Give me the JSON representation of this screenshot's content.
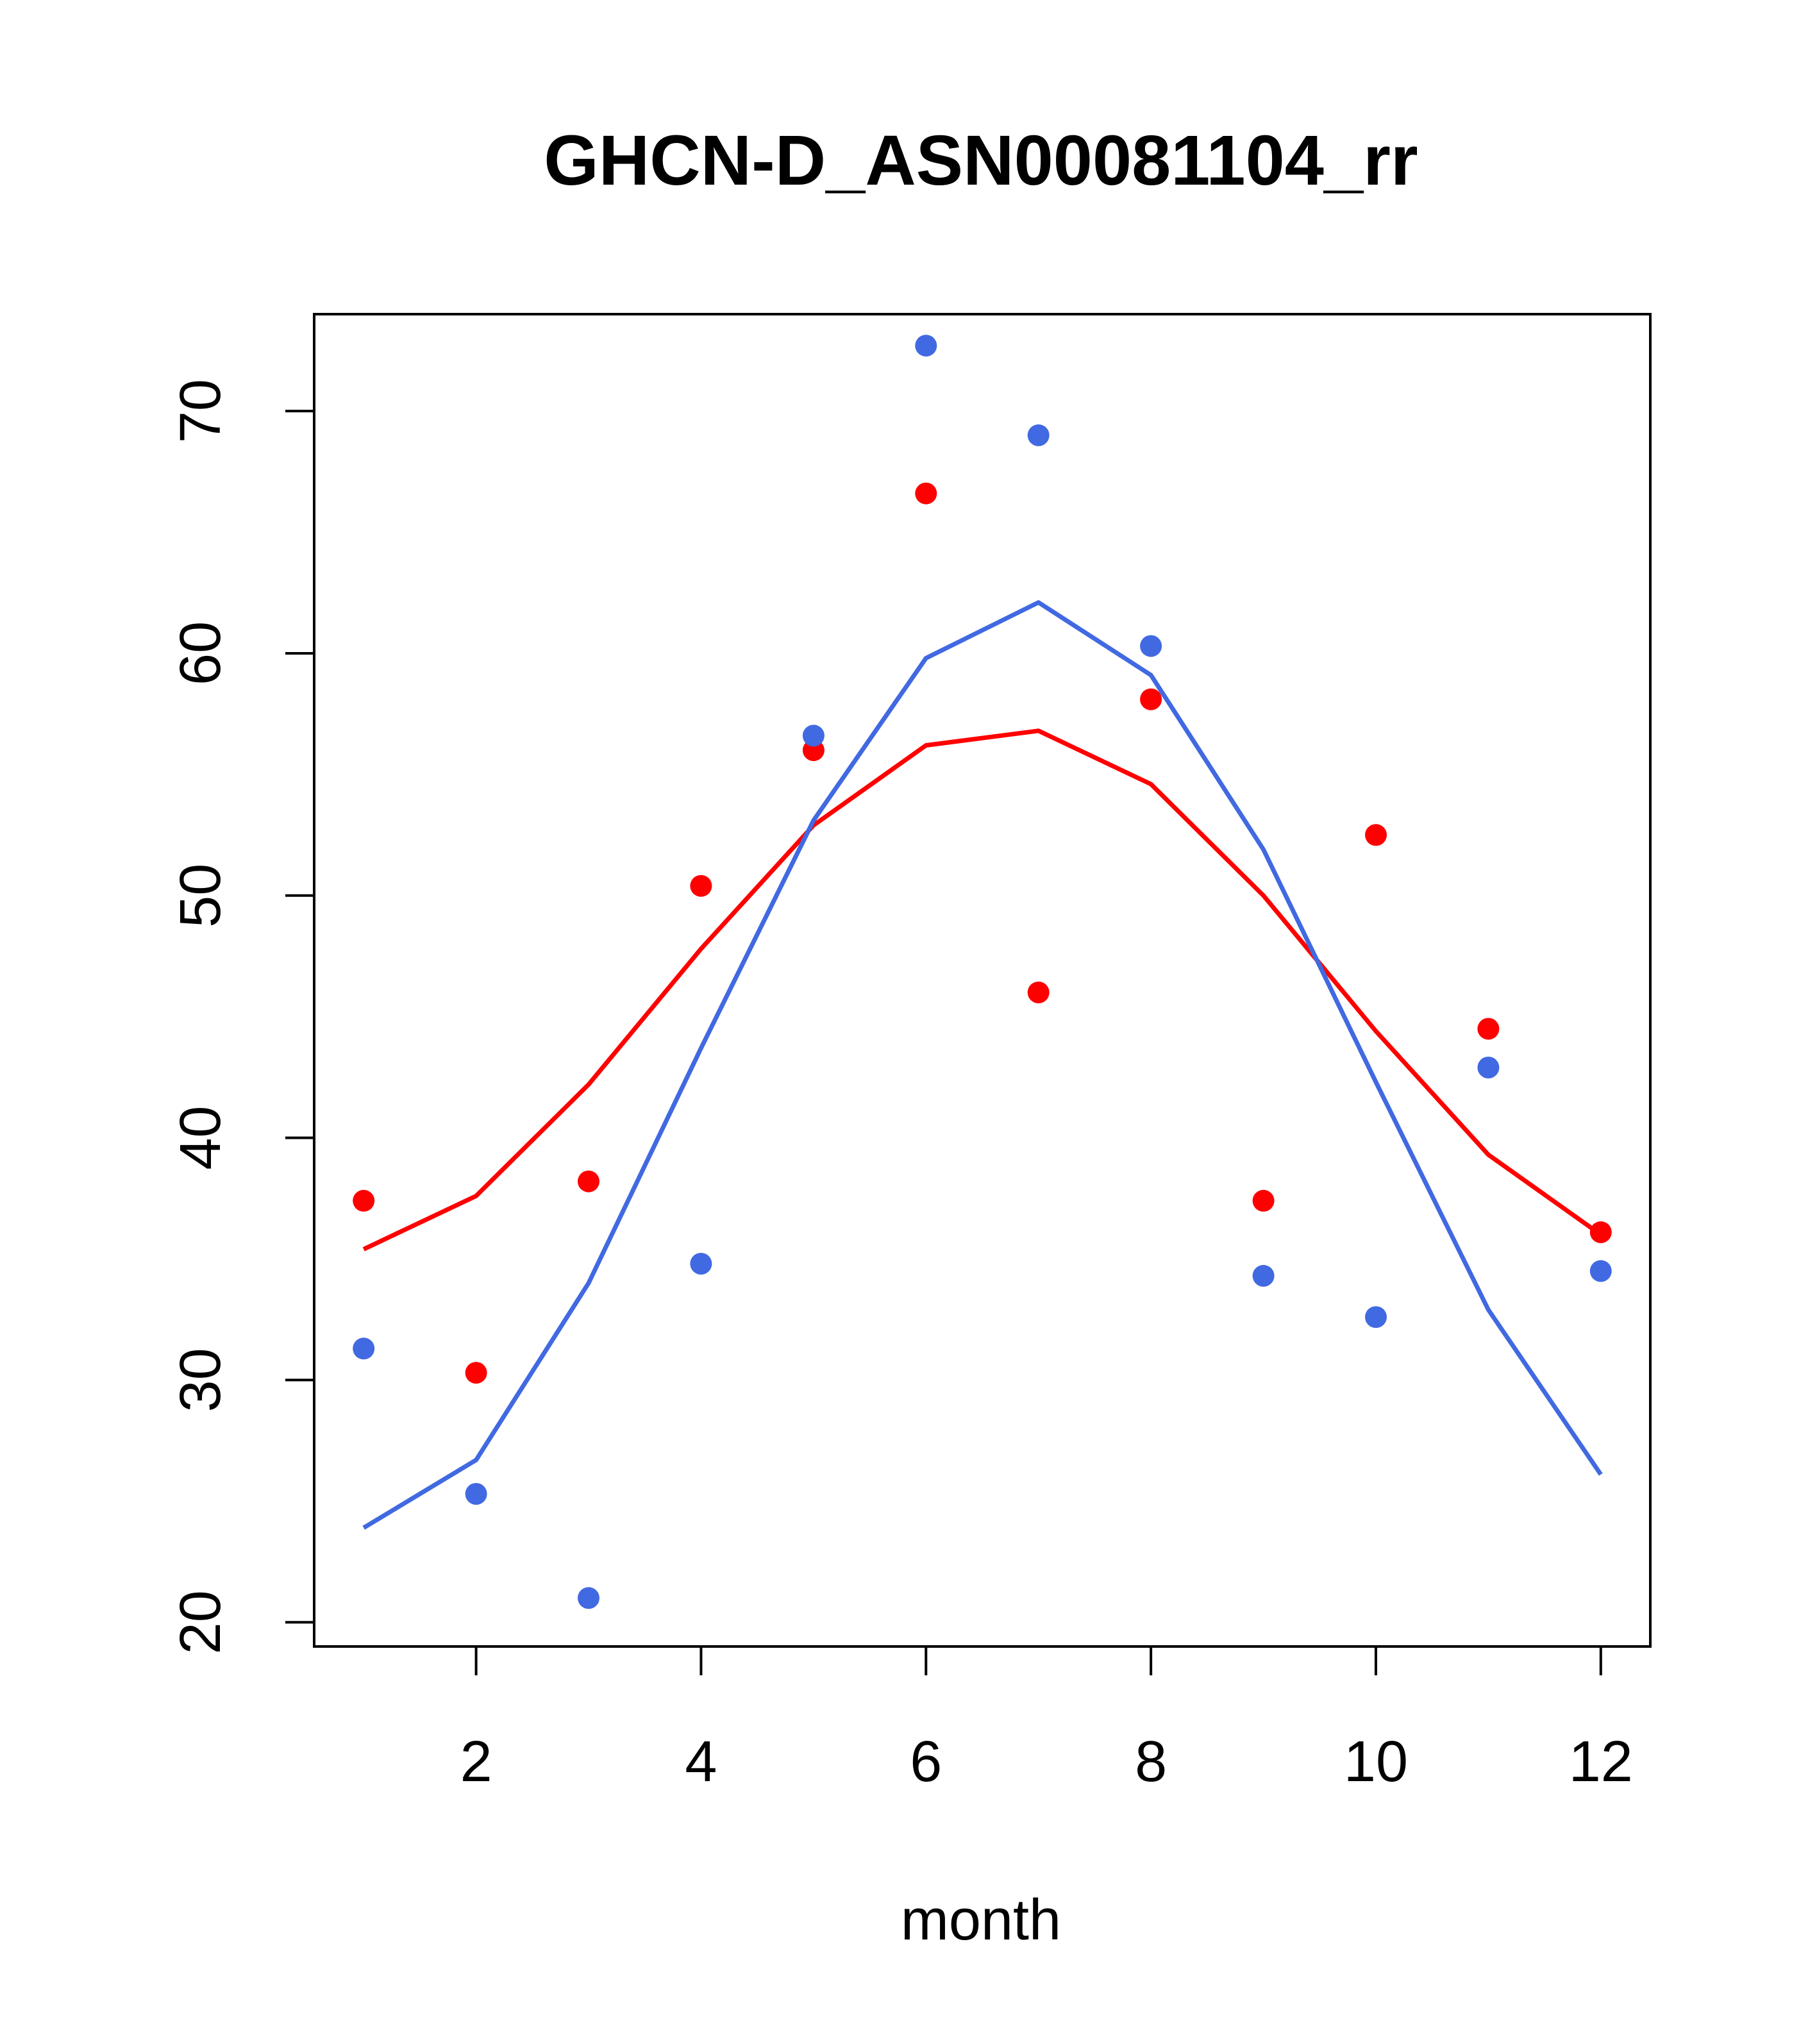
{
  "chart_data": {
    "type": "scatter",
    "title": "GHCN-D_ASN00081104_rr",
    "xlabel": "month",
    "ylabel": "",
    "xlim": [
      0.56,
      12.44
    ],
    "ylim": [
      19,
      74
    ],
    "xticks": [
      2,
      4,
      6,
      8,
      10,
      12
    ],
    "yticks": [
      20,
      30,
      40,
      50,
      60,
      70
    ],
    "grid": false,
    "legend": "none",
    "series": [
      {
        "color": "#FF0000",
        "points": {
          "x": [
            1,
            2,
            3,
            4,
            5,
            6,
            7,
            8,
            9,
            10,
            11,
            12
          ],
          "y": [
            37.4,
            30.3,
            38.2,
            50.4,
            56.0,
            66.6,
            46.0,
            58.1,
            37.4,
            52.5,
            44.5,
            36.1
          ]
        },
        "line": {
          "x": [
            1,
            2,
            3,
            4,
            5,
            6,
            7,
            8,
            9,
            10,
            11,
            12
          ],
          "y": [
            35.4,
            37.6,
            42.2,
            47.8,
            52.9,
            56.2,
            56.8,
            54.6,
            50.0,
            44.4,
            39.3,
            36.0
          ]
        }
      },
      {
        "color": "#4169E1",
        "points": {
          "x": [
            1,
            2,
            3,
            4,
            5,
            6,
            7,
            8,
            9,
            10,
            11,
            12
          ],
          "y": [
            31.3,
            25.3,
            21.0,
            34.8,
            56.6,
            72.7,
            69.0,
            60.3,
            34.3,
            32.6,
            42.9,
            34.5
          ]
        },
        "line": {
          "x": [
            1,
            2,
            3,
            4,
            5,
            6,
            7,
            8,
            9,
            10,
            11,
            12
          ],
          "y": [
            23.9,
            26.7,
            34.0,
            43.7,
            53.1,
            59.8,
            62.1,
            59.1,
            51.9,
            42.3,
            32.9,
            26.1
          ]
        }
      }
    ]
  }
}
